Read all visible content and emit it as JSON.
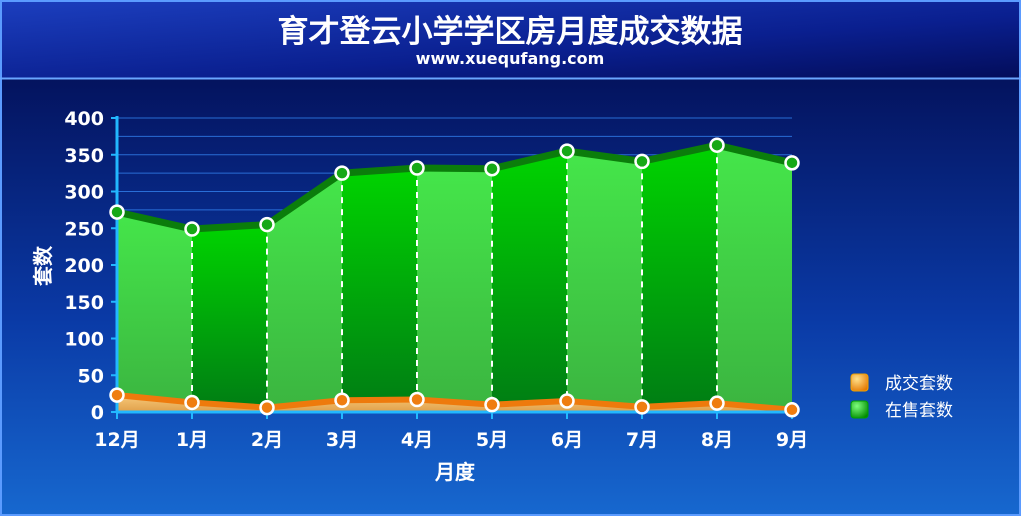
{
  "header": {
    "title": "育才登云小学学区房月度成交数据",
    "subtitle": "www.xuequfang.com"
  },
  "chart_data": {
    "type": "area",
    "title": "育才登云小学学区房月度成交数据",
    "subtitle": "www.xuequfang.com",
    "xlabel": "月度",
    "ylabel": "套数",
    "ylim": [
      0,
      400
    ],
    "yticks": [
      "0",
      "50",
      "100",
      "150",
      "200",
      "250",
      "300",
      "350",
      "400"
    ],
    "categories": [
      "12月",
      "1月",
      "2月",
      "3月",
      "4月",
      "5月",
      "6月",
      "7月",
      "8月",
      "9月"
    ],
    "grid": true,
    "legend_position": "right",
    "series": [
      {
        "name": "成交套数",
        "color": "#f08a10",
        "values": [
          23,
          13,
          6,
          16,
          17,
          10,
          15,
          7,
          12,
          3
        ]
      },
      {
        "name": "在售套数",
        "color": "#0aa80a",
        "values": [
          272,
          249,
          255,
          325,
          332,
          331,
          355,
          341,
          363,
          339
        ]
      }
    ]
  }
}
